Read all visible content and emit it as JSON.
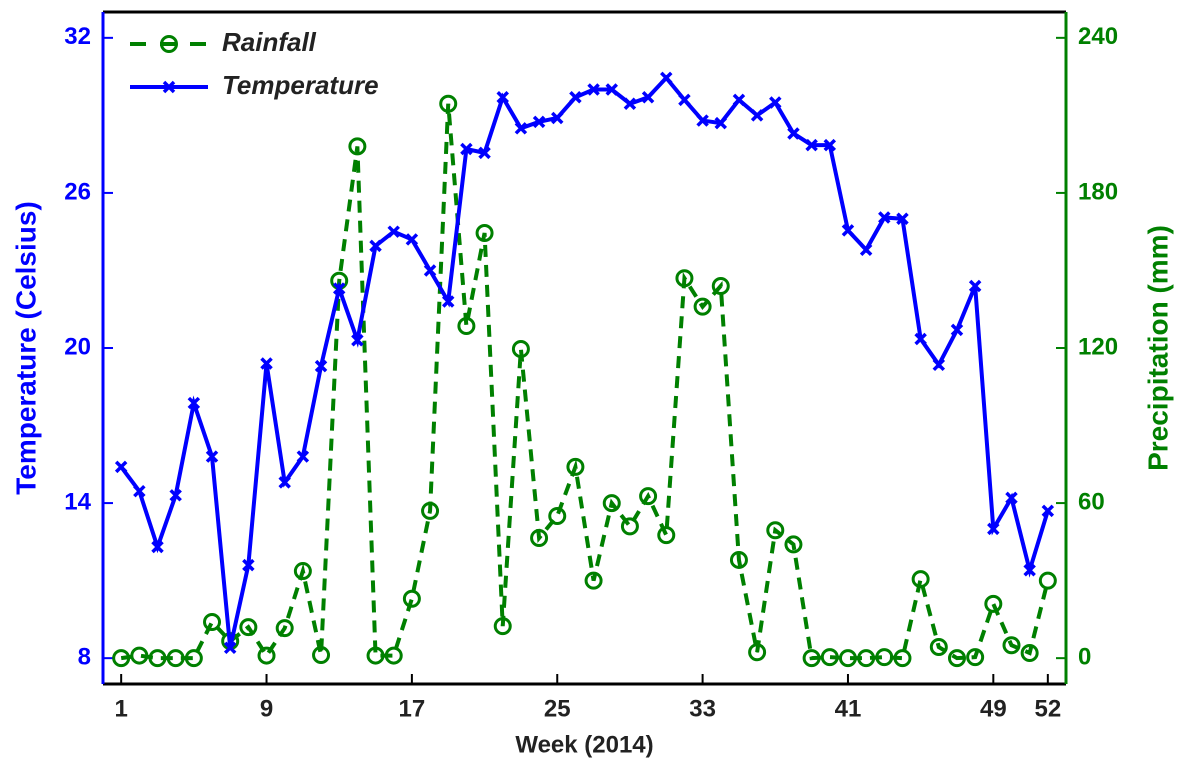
{
  "chart_data": {
    "type": "line",
    "x_label": "Week (2014)",
    "y_label": "Temperature (Celsius)",
    "y2_label": "Precipitation (mm)",
    "x": [
      1,
      2,
      3,
      4,
      5,
      6,
      7,
      8,
      9,
      10,
      11,
      12,
      13,
      14,
      15,
      16,
      17,
      18,
      19,
      20,
      21,
      22,
      23,
      24,
      25,
      26,
      27,
      28,
      29,
      30,
      31,
      32,
      33,
      34,
      35,
      36,
      37,
      38,
      39,
      40,
      41,
      42,
      43,
      44,
      45,
      46,
      47,
      48,
      49,
      50,
      51,
      52
    ],
    "xlim": [
      0,
      53
    ],
    "xticks": [
      1,
      9,
      17,
      25,
      33,
      41,
      49,
      52
    ],
    "ylim": [
      7,
      33
    ],
    "yticks": [
      8,
      14,
      20,
      26,
      32
    ],
    "y_color": "#0000ff",
    "y2lim": [
      -10,
      250
    ],
    "y2ticks": [
      0,
      60,
      120,
      180,
      240
    ],
    "y2_color": "#008000",
    "legend": "upper left",
    "series": [
      {
        "name": "Rainfall",
        "color": "#008000",
        "axis": "y2",
        "linestyle": "dashed",
        "marker": "circle",
        "values": [
          0,
          1,
          0,
          0,
          0,
          14,
          6.6,
          12,
          1,
          11.6,
          33.7,
          1.2,
          146,
          198,
          1,
          1,
          23,
          57,
          214.5,
          128.5,
          164.5,
          12.4,
          119.6,
          46.5,
          55,
          74,
          30,
          60,
          51,
          62.7,
          47.6,
          147,
          136,
          144,
          38,
          2.3,
          49.5,
          44,
          0,
          0.4,
          0,
          0,
          0.4,
          0,
          30.6,
          4.3,
          0,
          0.4,
          21,
          5,
          2,
          30
        ]
      },
      {
        "name": "Temperature",
        "color": "#0000ff",
        "axis": "y",
        "linestyle": "solid",
        "marker": "x",
        "values": [
          15.4,
          14.46,
          12.3,
          14.3,
          17.87,
          15.8,
          8.4,
          11.6,
          19.4,
          14.8,
          15.8,
          19.3,
          22.3,
          20.3,
          23.95,
          24.5,
          24.2,
          23.0,
          21.8,
          27.7,
          27.55,
          29.7,
          28.5,
          28.75,
          28.9,
          29.7,
          30.0,
          30.0,
          29.45,
          29.7,
          30.45,
          29.6,
          28.8,
          28.7,
          29.6,
          29.0,
          29.5,
          28.3,
          27.85,
          27.85,
          24.55,
          23.8,
          25.05,
          25.0,
          20.35,
          19.35,
          20.7,
          22.4,
          13.0,
          14.2,
          11.4,
          13.7
        ]
      }
    ]
  }
}
